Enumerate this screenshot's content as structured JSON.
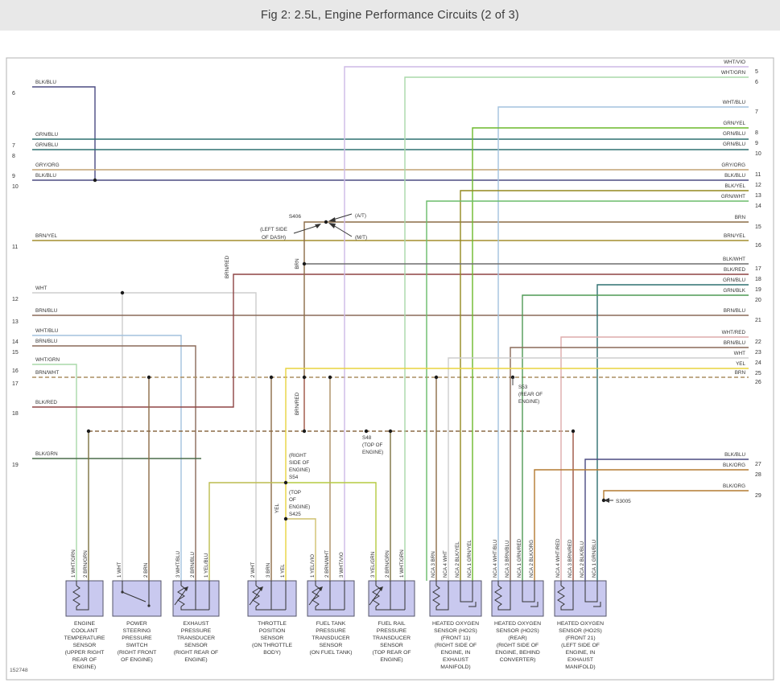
{
  "title": "Fig 2: 2.5L, Engine Performance Circuits (2 of 3)",
  "diagram_id": "152748",
  "palette": {
    "header_bg": "#e8e8e8",
    "component_fill": "#c9c9ef",
    "line_text": "#333333"
  },
  "wire_colors": {
    "BLK/BLU": "#4b4b82",
    "GRN/BLU": "#2f7070",
    "GRY/ORG": "#c2a273",
    "BRN/YEL": "#a38d2f",
    "WHT": "#cdcdcd",
    "BRN/BLU": "#8a6a58",
    "WHT/BLU": "#a3c2de",
    "WHT/GRN": "#a9d8a9",
    "BRN/WHT": "#ab8d62",
    "BLK/RED": "#8d4343",
    "BLK/GRN": "#4a6b4a",
    "WHT/VIO": "#cdb9e6",
    "GRN/YEL": "#6cb92c",
    "GRN/WHT": "#6abb6a",
    "BRN": "#8c6b46",
    "BLK/YEL": "#93891f",
    "BLK/WHT": "#6f6f6f",
    "GRN/BLK": "#3c603c",
    "BRN/RED": "#9c5242",
    "WHT/RED": "#deabab",
    "YEL": "#e8d33e",
    "BLK/ORG": "#b37a31",
    "YEL/BLU": "#bcbc4e",
    "YEL/VIO": "#cfc06e",
    "YEL/GRN": "#b5ca40",
    "BRN/GRN": "#7c7140",
    "GRN/RED": "#4f9a55"
  },
  "left_pins": [
    {
      "pin": "6",
      "wire": "BLK/BLU"
    },
    {
      "pin": "7",
      "wire": "GRN/BLU"
    },
    {
      "pin": "8",
      "wire": "GRN/BLU"
    },
    {
      "pin": "9",
      "wire": "GRY/ORG"
    },
    {
      "pin": "10",
      "wire": "BLK/BLU"
    },
    {
      "pin": "11",
      "wire": "BRN/YEL"
    },
    {
      "pin": "12",
      "wire": "WHT"
    },
    {
      "pin": "13",
      "wire": "BRN/BLU"
    },
    {
      "pin": "14",
      "wire": "WHT/BLU"
    },
    {
      "pin": "15",
      "wire": "BRN/BLU"
    },
    {
      "pin": "16",
      "wire": "WHT/GRN"
    },
    {
      "pin": "17",
      "wire": "BRN/WHT"
    },
    {
      "pin": "18",
      "wire": "BLK/RED"
    },
    {
      "pin": "19",
      "wire": "BLK/GRN"
    }
  ],
  "right_pins": [
    {
      "pin": "5",
      "wire": "WHT/VIO"
    },
    {
      "pin": "6",
      "wire": "WHT/GRN"
    },
    {
      "pin": "7",
      "wire": "WHT/BLU"
    },
    {
      "pin": "8",
      "wire": "GRN/YEL"
    },
    {
      "pin": "9",
      "wire": "GRN/BLU"
    },
    {
      "pin": "10",
      "wire": "GRN/BLU"
    },
    {
      "pin": "11",
      "wire": "GRY/ORG"
    },
    {
      "pin": "12",
      "wire": "BLK/BLU"
    },
    {
      "pin": "13",
      "wire": "BLK/YEL"
    },
    {
      "pin": "14",
      "wire": "GRN/WHT"
    },
    {
      "pin": "15",
      "wire": "BRN"
    },
    {
      "pin": "16",
      "wire": "BRN/YEL"
    },
    {
      "pin": "17",
      "wire": "BLK/WHT"
    },
    {
      "pin": "18",
      "wire": "BLK/RED"
    },
    {
      "pin": "19",
      "wire": "GRN/BLU"
    },
    {
      "pin": "20",
      "wire": "GRN/BLK"
    },
    {
      "pin": "21",
      "wire": "BRN/BLU"
    },
    {
      "pin": "22",
      "wire": "WHT/RED"
    },
    {
      "pin": "23",
      "wire": "BRN/BLU"
    },
    {
      "pin": "24",
      "wire": "WHT"
    },
    {
      "pin": "25",
      "wire": "YEL"
    },
    {
      "pin": "26",
      "wire": "BRN"
    },
    {
      "pin": "27",
      "wire": "BLK/BLU"
    },
    {
      "pin": "28",
      "wire": "BLK/ORG"
    },
    {
      "pin": "29",
      "wire": "BLK/ORG"
    }
  ],
  "inline_labels": [
    "BRN/RED",
    "BRN",
    "BRN/RED",
    "YEL"
  ],
  "annotations": {
    "at_label": "(A/T)",
    "mt_label": "(M/T)"
  },
  "splices": {
    "s406": {
      "name": "S406",
      "location_lines": [
        "(LEFT SIDE",
        "OF DASH)"
      ]
    },
    "s53": {
      "lines": [
        "S53",
        "(REAR OF",
        "ENGINE)"
      ]
    },
    "s48": {
      "lines": [
        "S48",
        "(TOP OF",
        "ENGINE)"
      ]
    },
    "s54": {
      "lines": [
        "(RIGHT",
        "SIDE OF",
        "ENGINE)",
        "S54"
      ]
    },
    "s425": {
      "lines": [
        "(TOP",
        "OF",
        "ENGINE)",
        "S425"
      ]
    },
    "s3005": {
      "name": "S3005"
    }
  },
  "nca_label": "NCA",
  "components": [
    {
      "name": "ENGINE COOLANT TEMPERATURE SENSOR",
      "location": "(UPPER RIGHT REAR OF ENGINE)",
      "symbol": "resistor",
      "pins": [
        {
          "num": "1",
          "wire": "WHT/GRN"
        },
        {
          "num": "2",
          "wire": "BRN/GRN"
        }
      ]
    },
    {
      "name": "POWER STEERING PRESSURE SWITCH",
      "location": "(RIGHT FRONT OF ENGINE)",
      "symbol": "switch",
      "pins": [
        {
          "num": "1",
          "wire": "WHT"
        },
        {
          "num": "2",
          "wire": "BRN"
        }
      ]
    },
    {
      "name": "EXHAUST PRESSURE TRANSDUCER SENSOR",
      "location": "(RIGHT REAR OF ENGINE)",
      "symbol": "potentiometer",
      "pins": [
        {
          "num": "3",
          "wire": "WHT/BLU"
        },
        {
          "num": "2",
          "wire": "BRN/BLU"
        },
        {
          "num": "1",
          "wire": "YEL/BLU"
        }
      ]
    },
    {
      "name": "THROTTLE POSITION SENSOR",
      "location": "(ON THROTTLE BODY)",
      "symbol": "potentiometer",
      "pins": [
        {
          "num": "2",
          "wire": "WHT"
        },
        {
          "num": "3",
          "wire": "BRN"
        },
        {
          "num": "1",
          "wire": "YEL"
        }
      ]
    },
    {
      "name": "FUEL TANK PRESSURE TRANSDUCER SENSOR",
      "location": "(ON FUEL TANK)",
      "symbol": "potentiometer",
      "pins": [
        {
          "num": "1",
          "wire": "YEL/VIO"
        },
        {
          "num": "2",
          "wire": "BRN/WHT"
        },
        {
          "num": "3",
          "wire": "WHT/VIO"
        }
      ]
    },
    {
      "name": "FUEL RAIL PRESSURE TRANSDUCER SENSOR",
      "location": "(TOP REAR OF ENGINE)",
      "symbol": "potentiometer",
      "pins": [
        {
          "num": "3",
          "wire": "YEL/GRN"
        },
        {
          "num": "2",
          "wire": "BRN/GRN"
        },
        {
          "num": "1",
          "wire": "WHT/GRN"
        }
      ]
    },
    {
      "name": "HEATED OXYGEN SENSOR (HO2S) (FRONT 11)",
      "location": "(RIGHT SIDE OF ENGINE, IN EXHAUST MANIFOLD)",
      "symbol": "oxygen-sensor",
      "pins": [
        {
          "num": "3",
          "wire": "BRN",
          "nca": true
        },
        {
          "num": "4",
          "wire": "WHT",
          "nca": true
        },
        {
          "num": "2",
          "wire": "BLK/YEL",
          "nca": true
        },
        {
          "num": "1",
          "wire": "GRN/YEL",
          "nca": true
        }
      ]
    },
    {
      "name": "HEATED OXYGEN SENSOR (HO2S) (REAR)",
      "location": "(RIGHT SIDE OF ENGINE, BEHIND CONVERTER)",
      "symbol": "oxygen-sensor",
      "pins": [
        {
          "num": "4",
          "wire": "WHT/BLU",
          "nca": true
        },
        {
          "num": "3",
          "wire": "BRN/BLU",
          "nca": true
        },
        {
          "num": "1",
          "wire": "GRN/RED",
          "nca": true
        },
        {
          "num": "2",
          "wire": "BLK/ORG",
          "nca": true
        }
      ]
    },
    {
      "name": "HEATED OXYGEN SENSOR (HO2S) (FRONT 21)",
      "location": "(LEFT SIDE OF ENGINE, IN EXHAUST MANIFOLD)",
      "symbol": "oxygen-sensor",
      "pins": [
        {
          "num": "4",
          "wire": "WHT/RED",
          "nca": true
        },
        {
          "num": "3",
          "wire": "BRN/RED",
          "nca": true
        },
        {
          "num": "2",
          "wire": "BLK/BLU",
          "nca": true
        },
        {
          "num": "1",
          "wire": "GRN/BLU",
          "nca": true
        }
      ]
    }
  ]
}
